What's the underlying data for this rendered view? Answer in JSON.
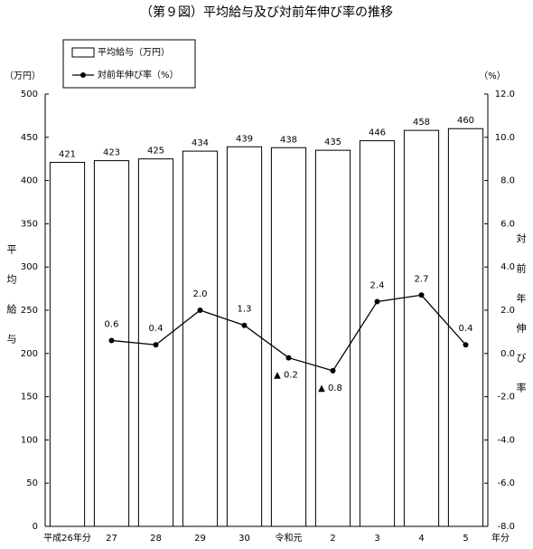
{
  "chart_data": {
    "type": "bar",
    "title": "（第９図）平均給与及び対前年伸び率の推移",
    "y_unit": "（万円）",
    "y2_unit": "（%）",
    "ylabel": "平均給与",
    "y2label": "対前年伸び率",
    "x_unit": "年分",
    "categories": [
      "平成26年分",
      "27",
      "28",
      "29",
      "30",
      "令和元",
      "2",
      "3",
      "4",
      "5"
    ],
    "series": [
      {
        "name": "平均給与（万円）",
        "type": "bar",
        "color": "#ffffff",
        "values": [
          421,
          423,
          425,
          434,
          439,
          438,
          435,
          446,
          458,
          460
        ]
      },
      {
        "name": "対前年伸び率（%）",
        "type": "line",
        "axis": "y2",
        "color": "#000000",
        "values": [
          null,
          0.6,
          0.4,
          2.0,
          1.3,
          -0.2,
          -0.8,
          2.4,
          2.7,
          0.4
        ],
        "value_labels": [
          null,
          "0.6",
          "0.4",
          "2.0",
          "1.3",
          "▲ 0.2",
          "▲ 0.8",
          "2.4",
          "2.7",
          "0.4"
        ]
      }
    ],
    "ylim": [
      0,
      500
    ],
    "yticks": [
      0,
      50,
      100,
      150,
      200,
      250,
      300,
      350,
      400,
      450,
      500
    ],
    "y2lim": [
      -8,
      12
    ],
    "y2ticks": [
      {
        "value": -8,
        "label": "-8.0"
      },
      {
        "value": -6,
        "label": "-6.0"
      },
      {
        "value": -4,
        "label": "-4.0"
      },
      {
        "value": -2,
        "label": "-2.0"
      },
      {
        "value": 0,
        "label": "0.0"
      },
      {
        "value": 2,
        "label": "2.0"
      },
      {
        "value": 4,
        "label": "4.0"
      },
      {
        "value": 6,
        "label": "6.0"
      },
      {
        "value": 8,
        "label": "8.0"
      },
      {
        "value": 10,
        "label": "10.0"
      },
      {
        "value": 12,
        "label": "12.0"
      }
    ],
    "grid": false
  }
}
